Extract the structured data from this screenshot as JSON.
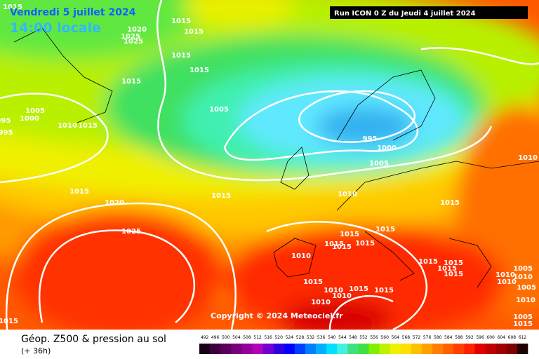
{
  "header": {
    "date": "Vendredi 5 juillet 2024",
    "time": "14:00 locale",
    "run": "Run ICON 0 Z du Jeudi 4 juillet 2024",
    "copyright": "Copyright © 2024 Meteociel.fr"
  },
  "legend": {
    "title": "Géop. Z500 & pression au sol",
    "lead": "(+ 36h)",
    "labels": [
      492,
      496,
      500,
      504,
      508,
      512,
      516,
      520,
      524,
      528,
      532,
      536,
      540,
      544,
      548,
      552,
      556,
      560,
      564,
      568,
      572,
      576,
      580,
      584,
      588,
      592,
      596,
      600,
      604,
      608,
      612
    ],
    "colors": [
      "#1a001a",
      "#3c003c",
      "#5a005a",
      "#78007a",
      "#96009a",
      "#b400b8",
      "#7000d0",
      "#3000e0",
      "#0000ff",
      "#0040ff",
      "#0080ff",
      "#00b0ff",
      "#00e0ff",
      "#40f0e0",
      "#40e080",
      "#40e040",
      "#80f000",
      "#c0f000",
      "#f0f000",
      "#ffe000",
      "#ffc000",
      "#ffa000",
      "#ff8000",
      "#ff6000",
      "#ff4000",
      "#ff2000",
      "#e00000",
      "#c00000",
      "#a00000",
      "#800000",
      "#200000"
    ]
  },
  "isobar_labels": [
    "1015",
    "1015",
    "1015",
    "1020",
    "1025",
    "1025",
    "1015",
    "1015",
    "1015",
    "1005",
    "1005",
    "1000",
    "995",
    "995",
    "1010",
    "1015",
    "995",
    "1000",
    "1005",
    "1010",
    "1015",
    "1015",
    "1010",
    "1020",
    "1015",
    "1025",
    "1015",
    "1015",
    "1015",
    "1015",
    "1015",
    "1010",
    "1015",
    "1015",
    "1015",
    "1015",
    "1010",
    "1005",
    "1010",
    "1010",
    "1015",
    "1010",
    "1010",
    "1015",
    "1015",
    "1010",
    "1005",
    "1010",
    "1005",
    "1015",
    "1015"
  ]
}
